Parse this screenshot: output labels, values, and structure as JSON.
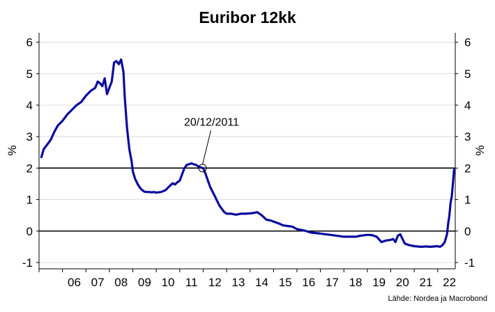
{
  "chart_data": {
    "type": "line",
    "title": "Euribor 12kk",
    "ylabel_left": "%",
    "ylabel_right": "%",
    "ylim": [
      -1.2,
      6.3
    ],
    "yticks": [
      "-1",
      "0",
      "1",
      "2",
      "3",
      "4",
      "5",
      "6"
    ],
    "xlim": [
      2005.0,
      2022.75
    ],
    "xticks": [
      "06",
      "07",
      "08",
      "09",
      "10",
      "11",
      "12",
      "13",
      "14",
      "15",
      "16",
      "17",
      "18",
      "19",
      "20",
      "21",
      "22"
    ],
    "reference_lines": [
      0,
      2
    ],
    "grid": "horizontal",
    "colors": {
      "series": "#0a0a9e",
      "reference": "#000000",
      "grid": "#dcdcdc"
    },
    "annotation": {
      "label": "20/12/2011",
      "x": 2011.97,
      "y": 2.0
    },
    "source": "Lähde: Nordea ja Macrobond",
    "series": [
      {
        "x": [
          2005.1,
          2005.2,
          2005.35,
          2005.5,
          2005.65,
          2005.8,
          2006.0,
          2006.2,
          2006.4,
          2006.6,
          2006.8,
          2007.0,
          2007.2,
          2007.4,
          2007.5,
          2007.6,
          2007.7,
          2007.8,
          2007.9,
          2008.0,
          2008.1,
          2008.2,
          2008.3,
          2008.4,
          2008.5,
          2008.6,
          2008.65,
          2008.75,
          2008.85,
          2008.95,
          2009.0,
          2009.1,
          2009.2,
          2009.3,
          2009.4,
          2009.5,
          2009.6,
          2009.7,
          2009.8,
          2009.9,
          2010.0,
          2010.2,
          2010.4,
          2010.5,
          2010.6,
          2010.7,
          2010.8,
          2010.9,
          2011.0,
          2011.2,
          2011.3,
          2011.5,
          2011.6,
          2011.7,
          2011.8,
          2011.9,
          2012.0,
          2012.1,
          2012.2,
          2012.3,
          2012.4,
          2012.5,
          2012.6,
          2012.7,
          2012.8,
          2012.9,
          2013.0,
          2013.2,
          2013.4,
          2013.6,
          2013.8,
          2014.0,
          2014.2,
          2014.3,
          2014.5,
          2014.7,
          2014.9,
          2015.0,
          2015.2,
          2015.4,
          2015.6,
          2015.8,
          2016.0,
          2016.3,
          2016.6,
          2017.0,
          2017.5,
          2018.0,
          2018.5,
          2018.7,
          2019.0,
          2019.2,
          2019.4,
          2019.6,
          2019.8,
          2020.0,
          2020.1,
          2020.2,
          2020.3,
          2020.4,
          2020.5,
          2020.6,
          2020.8,
          2021.0,
          2021.3,
          2021.5,
          2021.7,
          2021.85,
          2022.0,
          2022.1,
          2022.2,
          2022.3,
          2022.4,
          2022.45,
          2022.5,
          2022.55,
          2022.6,
          2022.65,
          2022.7
        ],
        "y": [
          2.35,
          2.6,
          2.75,
          2.9,
          3.15,
          3.35,
          3.5,
          3.7,
          3.85,
          4.0,
          4.1,
          4.3,
          4.45,
          4.55,
          4.75,
          4.7,
          4.6,
          4.85,
          4.35,
          4.55,
          4.75,
          5.35,
          5.4,
          5.3,
          5.45,
          5.05,
          4.3,
          3.3,
          2.6,
          2.2,
          1.9,
          1.65,
          1.5,
          1.38,
          1.3,
          1.25,
          1.24,
          1.24,
          1.23,
          1.24,
          1.22,
          1.24,
          1.3,
          1.38,
          1.45,
          1.52,
          1.48,
          1.55,
          1.6,
          2.0,
          2.1,
          2.15,
          2.12,
          2.1,
          2.05,
          2.02,
          2.0,
          1.82,
          1.6,
          1.4,
          1.25,
          1.1,
          0.95,
          0.8,
          0.7,
          0.6,
          0.55,
          0.55,
          0.52,
          0.55,
          0.55,
          0.56,
          0.58,
          0.6,
          0.5,
          0.36,
          0.33,
          0.3,
          0.25,
          0.18,
          0.16,
          0.14,
          0.06,
          0.02,
          -0.05,
          -0.08,
          -0.13,
          -0.18,
          -0.18,
          -0.15,
          -0.12,
          -0.13,
          -0.18,
          -0.35,
          -0.3,
          -0.28,
          -0.25,
          -0.35,
          -0.15,
          -0.1,
          -0.25,
          -0.4,
          -0.45,
          -0.48,
          -0.5,
          -0.49,
          -0.5,
          -0.49,
          -0.48,
          -0.5,
          -0.45,
          -0.35,
          -0.1,
          0.25,
          0.5,
          0.9,
          1.1,
          1.5,
          1.95
        ]
      }
    ]
  }
}
